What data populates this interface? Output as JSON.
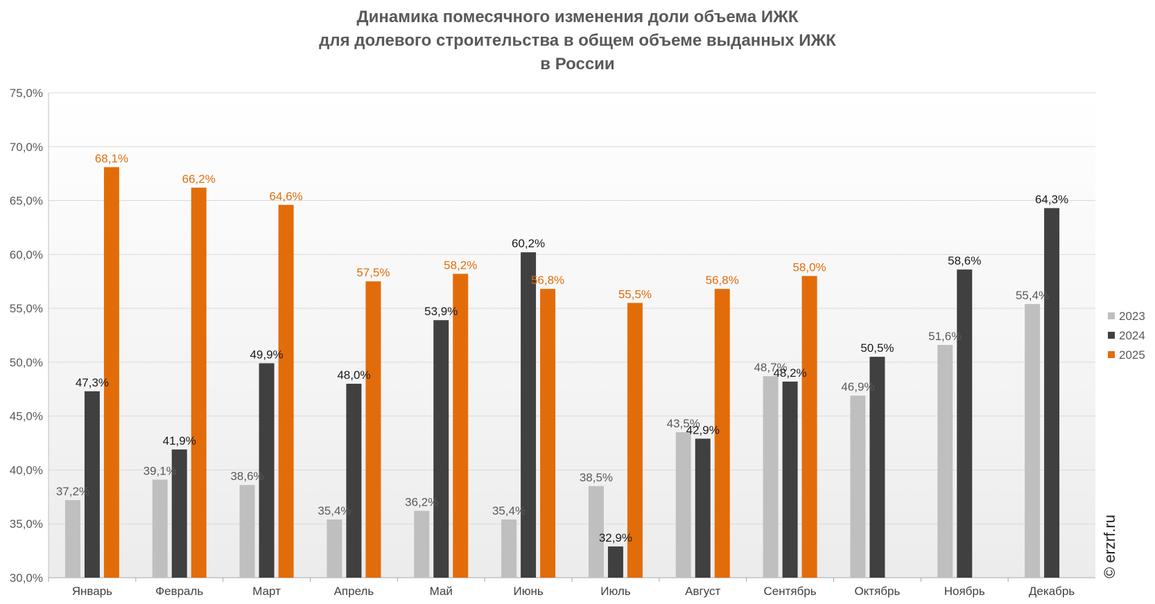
{
  "chart_data": {
    "type": "bar",
    "title_lines": [
      "Динамика помесячного изменения доли объема ИЖК",
      "для долевого строительства в общем объеме выданных ИЖК",
      "в России"
    ],
    "categories": [
      "Январь",
      "Февраль",
      "Март",
      "Апрель",
      "Май",
      "Июнь",
      "Июль",
      "Август",
      "Сентябрь",
      "Октябрь",
      "Ноябрь",
      "Декабрь"
    ],
    "series": [
      {
        "name": "2023",
        "color": "#bfbfbf",
        "label_color": "#595959",
        "values": [
          37.2,
          39.1,
          38.6,
          35.4,
          36.2,
          35.4,
          38.5,
          43.5,
          48.7,
          46.9,
          51.6,
          55.4
        ],
        "labels": [
          "37,2%",
          "39,1%",
          "38,6%",
          "35,4%",
          "36,2%",
          "35,4%",
          "38,5%",
          "43,5%",
          "48,7%",
          "46,9%",
          "51,6%",
          "55,4%"
        ]
      },
      {
        "name": "2024",
        "color": "#404040",
        "label_color": "#1a1a1a",
        "values": [
          47.3,
          41.9,
          49.9,
          48.0,
          53.9,
          60.2,
          32.9,
          42.9,
          48.2,
          50.5,
          58.6,
          64.3
        ],
        "labels": [
          "47,3%",
          "41,9%",
          "49,9%",
          "48,0%",
          "53,9%",
          "60,2%",
          "32,9%",
          "42,9%",
          "48,2%",
          "50,5%",
          "58,6%",
          "64,3%"
        ]
      },
      {
        "name": "2025",
        "color": "#e36c0a",
        "label_color": "#e36c0a",
        "values": [
          68.1,
          66.2,
          64.6,
          57.5,
          58.2,
          56.8,
          55.5,
          56.8,
          58.0,
          null,
          null,
          null
        ],
        "labels": [
          "68,1%",
          "66,2%",
          "64,6%",
          "57,5%",
          "58,2%",
          "56,8%",
          "55,5%",
          "56,8%",
          "58,0%",
          "",
          "",
          ""
        ]
      }
    ],
    "ylim": [
      30,
      75
    ],
    "yticks": [
      30,
      35,
      40,
      45,
      50,
      55,
      60,
      65,
      70,
      75
    ],
    "ytick_labels": [
      "30,0%",
      "35,0%",
      "40,0%",
      "45,0%",
      "50,0%",
      "55,0%",
      "60,0%",
      "65,0%",
      "70,0%",
      "75,0%"
    ],
    "legend": "right",
    "grid": true,
    "watermark": "© erzrf.ru"
  }
}
